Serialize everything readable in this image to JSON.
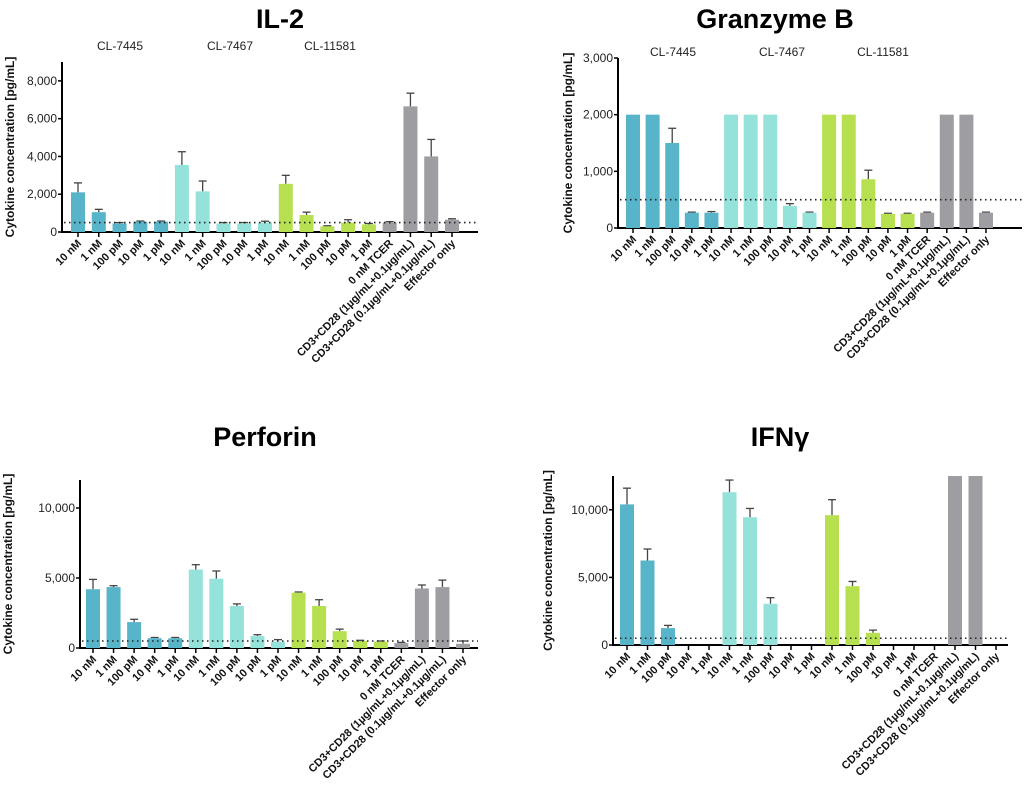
{
  "chart_data": [
    {
      "type": "bar",
      "title": "IL-2",
      "ylabel": "Cytokine concentration [pg/mL]",
      "ylim": [
        0,
        9000
      ],
      "yticks": [
        "0",
        "2,000",
        "4,000",
        "6,000",
        "8,000"
      ],
      "ytick_values": [
        0,
        2000,
        4000,
        6000,
        8000
      ],
      "group_labels": [
        "CL-7445",
        "CL-7467",
        "CL-11581"
      ],
      "categories": [
        "10 nM",
        "1 nM",
        "100 pM",
        "10 pM",
        "1 pM",
        "10 nM",
        "1 nM",
        "100 pM",
        "10 pM",
        "1 pM",
        "10 nM",
        "1 nM",
        "100 pM",
        "10 pM",
        "1 pM",
        "0 nM TCER",
        "CD3+CD28 (1µg/mL+0.1µg/mL)",
        "CD3+CD28 (0.1µg/mL+0.1µg/mL)",
        "Effector only"
      ],
      "values": [
        2100,
        1050,
        450,
        550,
        550,
        3550,
        2150,
        450,
        450,
        500,
        2550,
        900,
        300,
        500,
        400,
        500,
        6650,
        4000,
        650
      ],
      "error_upper": [
        2600,
        1200,
        500,
        580,
        580,
        4250,
        2700,
        500,
        500,
        570,
        3000,
        1050,
        330,
        650,
        450,
        550,
        7350,
        4900,
        700
      ],
      "reference_line": 500,
      "grid": false
    },
    {
      "type": "bar",
      "title": "Granzyme B",
      "ylabel": "Cytokine concentration [pg/mL]",
      "ylim": [
        0,
        3000
      ],
      "yticks": [
        "0",
        "1,000",
        "2,000",
        "3,000"
      ],
      "ytick_values": [
        0,
        1000,
        2000,
        3000
      ],
      "group_labels": [
        "CL-7445",
        "CL-7467",
        "CL-11581"
      ],
      "categories": [
        "10 nM",
        "1 nM",
        "100 pM",
        "10 pM",
        "1 pM",
        "10 nM",
        "1 nM",
        "100 pM",
        "10 pM",
        "1 pM",
        "10 nM",
        "1 nM",
        "100 pM",
        "10 pM",
        "1 pM",
        "0 nM TCER",
        "CD3+CD28 (1µg/mL+0.1µg/mL)",
        "CD3+CD28 (0.1µg/mL+0.1µg/mL)",
        "Effector only"
      ],
      "values": [
        2000,
        2000,
        1500,
        270,
        270,
        2000,
        2000,
        2000,
        390,
        270,
        2000,
        2000,
        860,
        250,
        250,
        270,
        2000,
        2000,
        270
      ],
      "error_upper": [
        2000,
        2000,
        1760,
        280,
        290,
        2000,
        2000,
        2000,
        430,
        280,
        2000,
        2000,
        1020,
        260,
        260,
        280,
        2000,
        2000,
        280
      ],
      "reference_line": 500,
      "grid": false
    },
    {
      "type": "bar",
      "title": "Perforin",
      "ylabel": "Cytokine concentration [pg/mL]",
      "ylim": [
        0,
        12000
      ],
      "yticks": [
        "0",
        "5,000",
        "10,000"
      ],
      "ytick_values": [
        0,
        5000,
        10000
      ],
      "group_labels": [],
      "categories": [
        "10 nM",
        "1 nM",
        "100 pM",
        "10 pM",
        "1 pM",
        "10 nM",
        "1 nM",
        "100 pM",
        "10 pM",
        "1 pM",
        "10 nM",
        "1 nM",
        "100 pM",
        "10 pM",
        "1 pM",
        "0 nM TCER",
        "CD3+CD28 (1µg/mL+0.1µg/mL)",
        "CD3+CD28 (0.1µg/mL+0.1µg/mL)",
        "Effector only"
      ],
      "values": [
        4200,
        4350,
        1850,
        700,
        700,
        5600,
        4950,
        3000,
        850,
        450,
        3950,
        3000,
        1200,
        500,
        450,
        350,
        4250,
        4350,
        300
      ],
      "error_upper": [
        4900,
        4450,
        2050,
        750,
        750,
        5950,
        5500,
        3150,
        950,
        600,
        4000,
        3450,
        1350,
        550,
        500,
        400,
        4500,
        4850,
        500
      ],
      "reference_line": 500,
      "grid": false
    },
    {
      "type": "bar",
      "title": "IFNγ",
      "ylabel": "Cytokine concentration [pg/mL]",
      "ylim": [
        0,
        12500
      ],
      "yticks": [
        "0",
        "5,000",
        "10,000"
      ],
      "ytick_values": [
        0,
        5000,
        10000
      ],
      "group_labels": [],
      "categories": [
        "10 nM",
        "1 nM",
        "100 pM",
        "10 pM",
        "1 pM",
        "10 nM",
        "1 nM",
        "100 pM",
        "10 pM",
        "1 pM",
        "10 nM",
        "1 nM",
        "100 pM",
        "10 pM",
        "1 pM",
        "0 nM TCER",
        "CD3+CD28 (1µg/mL+0.1µg/mL)",
        "CD3+CD28 (0.1µg/mL+0.1µg/mL)",
        "Effector only"
      ],
      "values": [
        10400,
        6250,
        1250,
        0,
        0,
        11300,
        9450,
        3050,
        0,
        0,
        9600,
        4350,
        900,
        0,
        0,
        0,
        12500,
        12500,
        0
      ],
      "error_upper": [
        11600,
        7100,
        1450,
        0,
        0,
        12200,
        10100,
        3500,
        0,
        0,
        10750,
        4700,
        1100,
        0,
        0,
        0,
        12500,
        12500,
        0
      ],
      "reference_line": 500,
      "grid": false
    }
  ],
  "colors": {
    "CL-7445": "#58b4c8",
    "CL-7467": "#94e2d9",
    "CL-11581": "#b6e04f",
    "controls": "#9d9da2"
  }
}
